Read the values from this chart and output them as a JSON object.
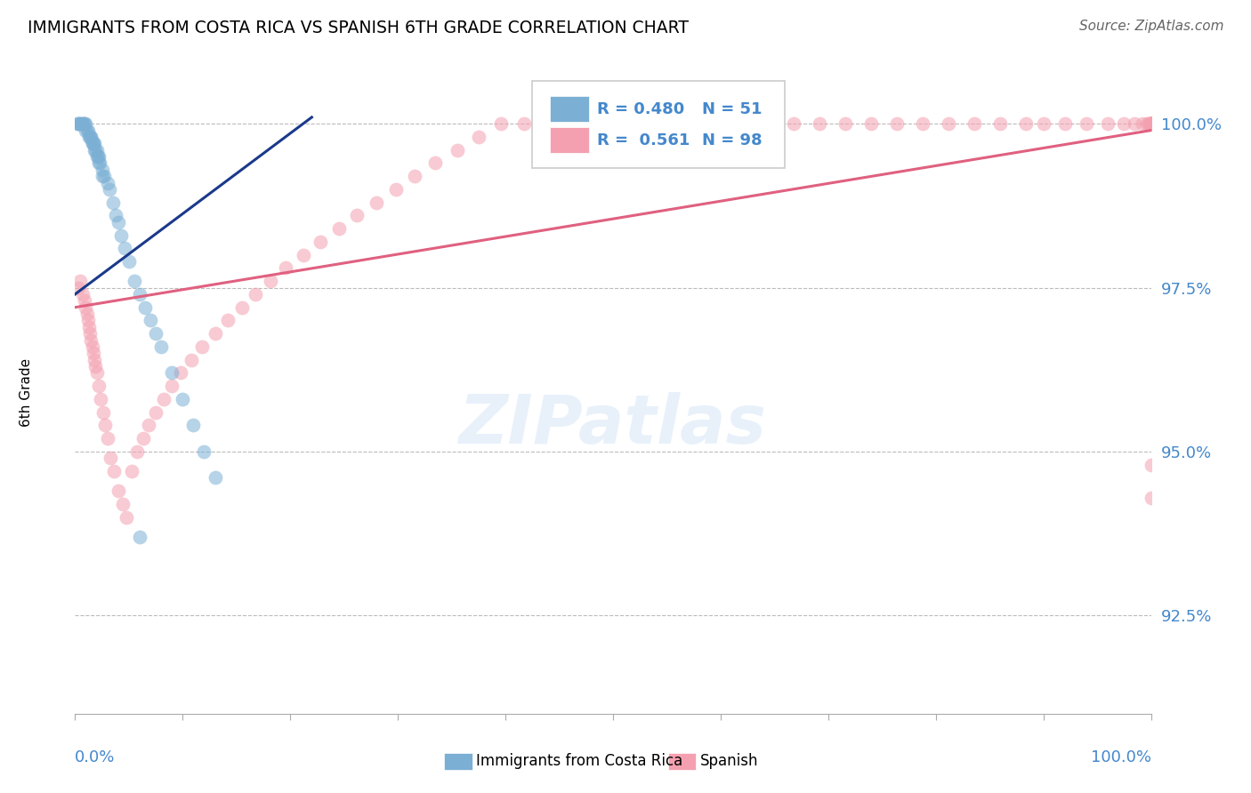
{
  "title": "IMMIGRANTS FROM COSTA RICA VS SPANISH 6TH GRADE CORRELATION CHART",
  "source": "Source: ZipAtlas.com",
  "ylabel_label": "6th Grade",
  "xlim": [
    0.0,
    1.0
  ],
  "ylim": [
    0.91,
    1.008
  ],
  "yticks": [
    0.925,
    0.95,
    0.975,
    1.0
  ],
  "ytick_labels": [
    "92.5%",
    "95.0%",
    "97.5%",
    "100.0%"
  ],
  "watermark": "ZIPatlas",
  "color_blue": "#7bafd4",
  "color_pink": "#f4a0b0",
  "color_blue_line": "#1a3a8a",
  "color_pink_line": "#e06080",
  "color_axis_labels": "#4488cc",
  "background_color": "#ffffff",
  "grid_color": "#bbbbbb",
  "blue_x": [
    0.002,
    0.003,
    0.004,
    0.005,
    0.006,
    0.007,
    0.008,
    0.009,
    0.01,
    0.01,
    0.011,
    0.012,
    0.013,
    0.014,
    0.015,
    0.016,
    0.017,
    0.018,
    0.019,
    0.02,
    0.021,
    0.022,
    0.023,
    0.025,
    0.027,
    0.03,
    0.032,
    0.035,
    0.038,
    0.04,
    0.043,
    0.046,
    0.05,
    0.055,
    0.06,
    0.065,
    0.07,
    0.075,
    0.08,
    0.09,
    0.1,
    0.11,
    0.12,
    0.13,
    0.015,
    0.016,
    0.018,
    0.02,
    0.022,
    0.025,
    0.06
  ],
  "blue_y": [
    1.0,
    1.0,
    1.0,
    1.0,
    1.0,
    1.0,
    1.0,
    1.0,
    1.0,
    0.999,
    0.999,
    0.999,
    0.998,
    0.998,
    0.998,
    0.997,
    0.997,
    0.997,
    0.996,
    0.996,
    0.995,
    0.995,
    0.994,
    0.993,
    0.992,
    0.991,
    0.99,
    0.988,
    0.986,
    0.985,
    0.983,
    0.981,
    0.979,
    0.976,
    0.974,
    0.972,
    0.97,
    0.968,
    0.966,
    0.962,
    0.958,
    0.954,
    0.95,
    0.946,
    0.998,
    0.997,
    0.996,
    0.995,
    0.994,
    0.992,
    0.937
  ],
  "pink_x": [
    0.003,
    0.005,
    0.007,
    0.009,
    0.01,
    0.011,
    0.012,
    0.013,
    0.014,
    0.015,
    0.016,
    0.017,
    0.018,
    0.019,
    0.02,
    0.022,
    0.024,
    0.026,
    0.028,
    0.03,
    0.033,
    0.036,
    0.04,
    0.044,
    0.048,
    0.053,
    0.058,
    0.063,
    0.068,
    0.075,
    0.082,
    0.09,
    0.098,
    0.108,
    0.118,
    0.13,
    0.142,
    0.155,
    0.168,
    0.182,
    0.196,
    0.212,
    0.228,
    0.245,
    0.262,
    0.28,
    0.298,
    0.316,
    0.335,
    0.355,
    0.375,
    0.396,
    0.417,
    0.438,
    0.46,
    0.482,
    0.504,
    0.527,
    0.55,
    0.573,
    0.596,
    0.62,
    0.644,
    0.668,
    0.692,
    0.716,
    0.74,
    0.764,
    0.788,
    0.812,
    0.836,
    0.86,
    0.884,
    0.9,
    0.92,
    0.94,
    0.96,
    0.975,
    0.985,
    0.992,
    0.996,
    0.998,
    0.999,
    1.0,
    1.0,
    1.0,
    1.0,
    1.0,
    1.0,
    1.0,
    1.0,
    1.0,
    1.0,
    1.0,
    1.0,
    1.0,
    1.0,
    1.0
  ],
  "pink_y": [
    0.975,
    0.976,
    0.974,
    0.973,
    0.972,
    0.971,
    0.97,
    0.969,
    0.968,
    0.967,
    0.966,
    0.965,
    0.964,
    0.963,
    0.962,
    0.96,
    0.958,
    0.956,
    0.954,
    0.952,
    0.949,
    0.947,
    0.944,
    0.942,
    0.94,
    0.947,
    0.95,
    0.952,
    0.954,
    0.956,
    0.958,
    0.96,
    0.962,
    0.964,
    0.966,
    0.968,
    0.97,
    0.972,
    0.974,
    0.976,
    0.978,
    0.98,
    0.982,
    0.984,
    0.986,
    0.988,
    0.99,
    0.992,
    0.994,
    0.996,
    0.998,
    1.0,
    1.0,
    1.0,
    1.0,
    1.0,
    1.0,
    1.0,
    1.0,
    1.0,
    1.0,
    1.0,
    1.0,
    1.0,
    1.0,
    1.0,
    1.0,
    1.0,
    1.0,
    1.0,
    1.0,
    1.0,
    1.0,
    1.0,
    1.0,
    1.0,
    1.0,
    1.0,
    1.0,
    1.0,
    1.0,
    1.0,
    1.0,
    1.0,
    1.0,
    1.0,
    1.0,
    1.0,
    1.0,
    1.0,
    1.0,
    1.0,
    1.0,
    1.0,
    0.948,
    0.943,
    1.0,
    1.0
  ],
  "blue_line_x": [
    0.0,
    0.22
  ],
  "blue_line_y_start": 0.974,
  "blue_line_y_end": 1.001,
  "pink_line_x": [
    0.0,
    1.0
  ],
  "pink_line_y_start": 0.972,
  "pink_line_y_end": 0.999
}
